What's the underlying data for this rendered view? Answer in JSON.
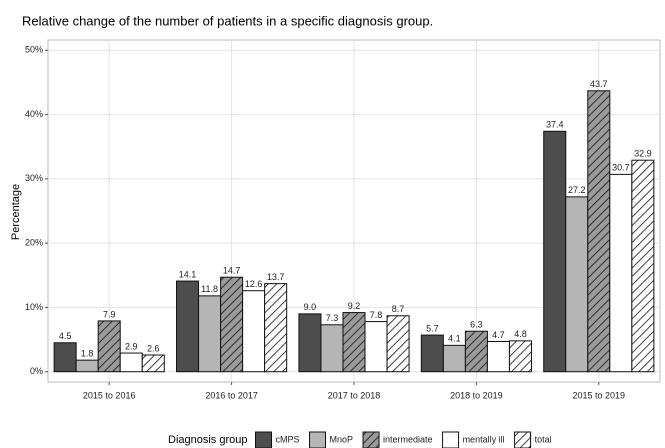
{
  "chart_data": {
    "type": "bar",
    "title": "Relative change of the number of patients in a specific diagnosis group.",
    "y_label": "Percentage",
    "legend_title": "Diagnosis group",
    "legend": "bottom",
    "grid": true,
    "categories": [
      "2015 to 2016",
      "2016 to 2017",
      "2017 to 2018",
      "2018 to 2019",
      "2015 to 2019"
    ],
    "ylim": [
      -1.6,
      51.6
    ],
    "yticks": [
      {
        "value": 0,
        "label": "0%"
      },
      {
        "value": 10,
        "label": "10%"
      },
      {
        "value": 20,
        "label": "20%"
      },
      {
        "value": 30,
        "label": "30%"
      },
      {
        "value": 40,
        "label": "40%"
      },
      {
        "value": 50,
        "label": "50%"
      }
    ],
    "series": [
      {
        "name": "cMPS",
        "color": "#4d4d4d",
        "pattern": "none",
        "values": [
          4.5,
          14.1,
          9.0,
          5.7,
          37.4
        ],
        "value_labels": [
          "4.5",
          "14.1",
          "9.0",
          "5.7",
          "37.4"
        ]
      },
      {
        "name": "MnoP",
        "color": "#b5b5b5",
        "pattern": "none",
        "values": [
          1.8,
          11.8,
          7.3,
          4.1,
          27.2
        ],
        "value_labels": [
          "1.8",
          "11.8",
          "7.3",
          "4.1",
          "27.2"
        ]
      },
      {
        "name": "intermediate",
        "color": "#9a9a9a",
        "pattern": "hatch",
        "values": [
          7.9,
          14.7,
          9.2,
          6.3,
          43.7
        ],
        "value_labels": [
          "7.9",
          "14.7",
          "9.2",
          "6.3",
          "43.7"
        ]
      },
      {
        "name": "mentally ill",
        "color": "#ffffff",
        "pattern": "none",
        "values": [
          2.9,
          12.6,
          7.8,
          4.7,
          30.7
        ],
        "value_labels": [
          "2.9",
          "12.6",
          "7.8",
          "4.7",
          "30.7"
        ]
      },
      {
        "name": "total",
        "color": "#ffffff",
        "pattern": "hatch",
        "values": [
          2.6,
          13.7,
          8.7,
          4.8,
          32.9
        ],
        "value_labels": [
          "2.6",
          "13.7",
          "8.7",
          "4.8",
          "32.9"
        ]
      }
    ]
  }
}
